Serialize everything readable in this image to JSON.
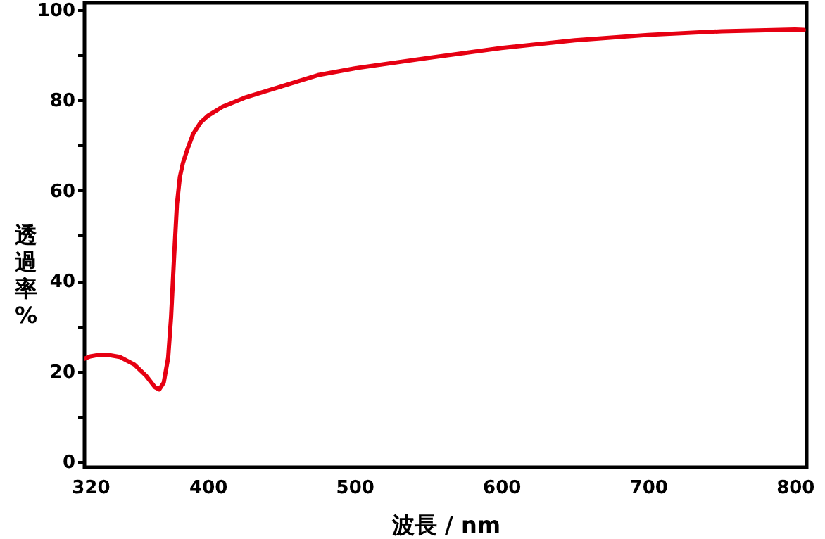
{
  "chart_data": {
    "type": "line",
    "xlabel": "波長 / nm",
    "ylabel": "透過率%",
    "xlim": [
      316,
      808
    ],
    "ylim": [
      -1.2,
      101.5
    ],
    "xticks": [
      320,
      400,
      500,
      600,
      700,
      800
    ],
    "yticks": [
      0,
      {
        "value": 10,
        "label": null
      },
      20,
      {
        "value": 30,
        "label": null
      },
      40,
      {
        "value": 50,
        "label": null
      },
      60,
      {
        "value": 70,
        "label": null
      },
      80,
      {
        "value": 90,
        "label": null
      },
      100
    ],
    "grid": false,
    "marker": "none",
    "line_style": "solid",
    "series": [
      {
        "color": "#e60012",
        "x": [
          316,
          320,
          325,
          331,
          340,
          350,
          358,
          364,
          367,
          370,
          373,
          375,
          377,
          379,
          381,
          383,
          386,
          390,
          395,
          400,
          410,
          425,
          450,
          475,
          500,
          550,
          600,
          650,
          700,
          750,
          800,
          806
        ],
        "values": [
          22.8,
          23.3,
          23.6,
          23.7,
          23.2,
          21.5,
          19.0,
          16.5,
          16.0,
          17.5,
          23,
          32,
          45,
          57,
          63,
          66,
          69,
          72.5,
          75,
          76.5,
          78.5,
          80.5,
          83,
          85.5,
          87,
          89.3,
          91.5,
          93.2,
          94.4,
          95.2,
          95.6,
          95.5
        ]
      }
    ]
  }
}
